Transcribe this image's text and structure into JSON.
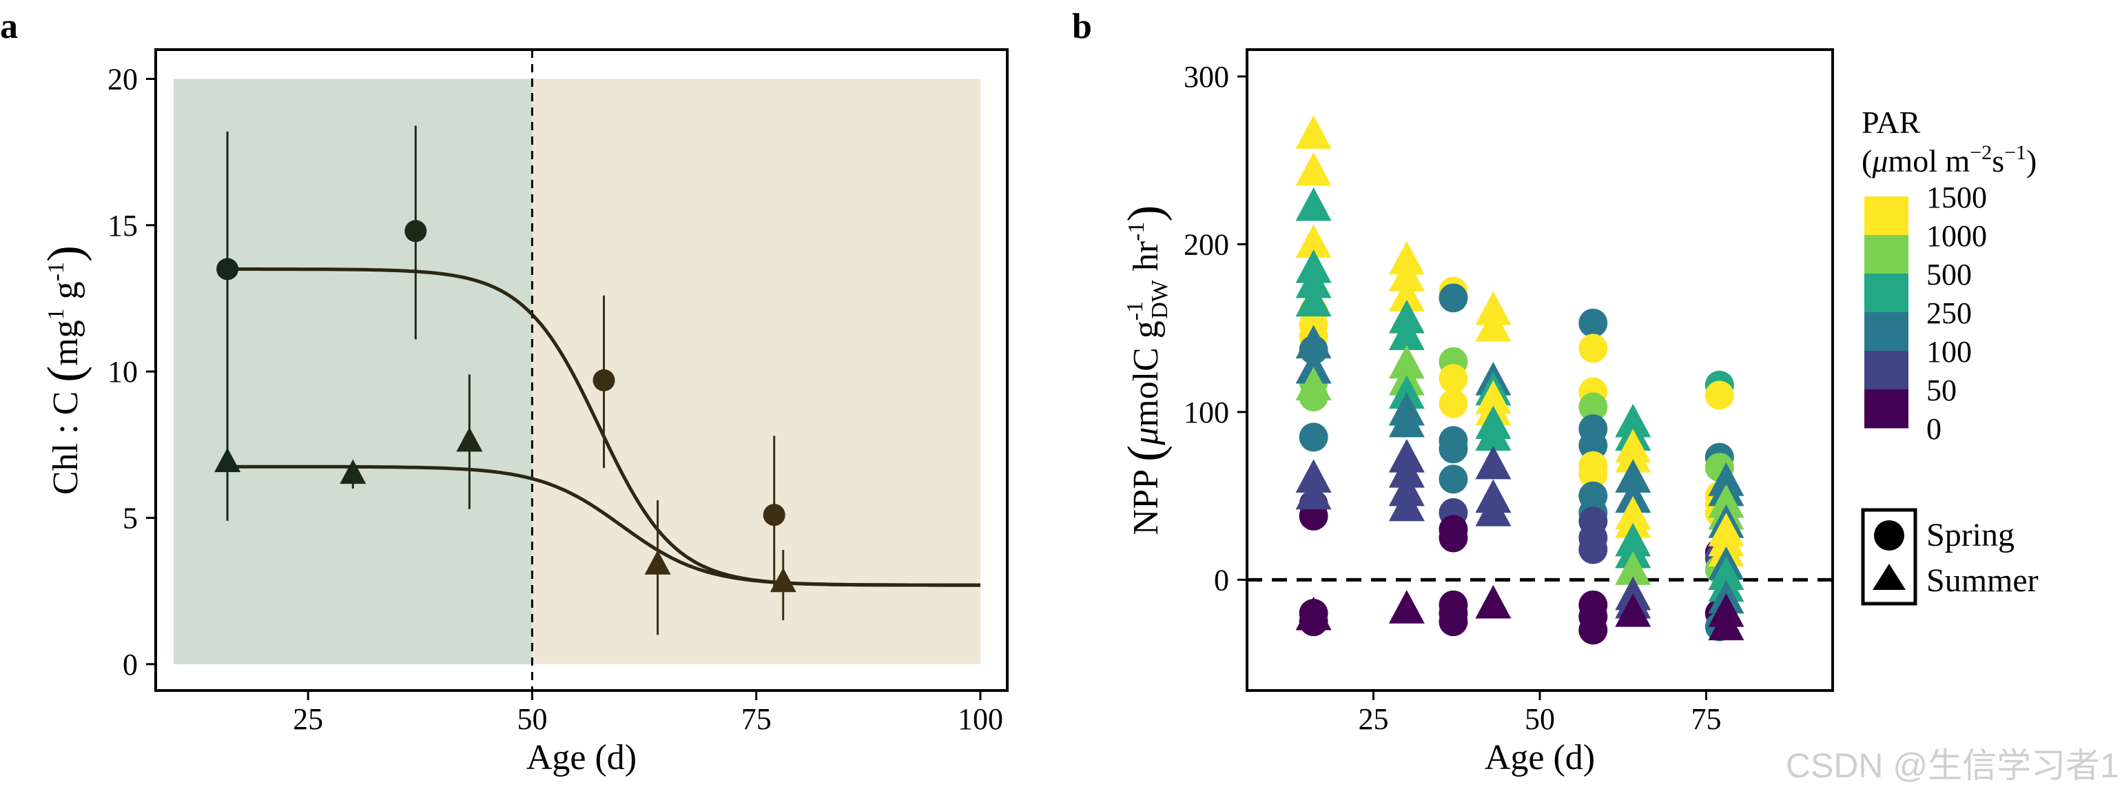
{
  "panels": {
    "a": {
      "label": "a"
    },
    "b": {
      "label": "b"
    }
  },
  "watermark": "CSDN @生信学习者1",
  "chart_data": [
    {
      "panel": "a",
      "type": "scatter",
      "xlabel": "Age (d)",
      "ylabel_main": "Chl : C ",
      "ylabel_paren_l": "(",
      "ylabel_unit": "mg",
      "ylabel_exp1": "1",
      "ylabel_unit2": " g",
      "ylabel_exp2": "-1",
      "ylabel_paren_r": ")",
      "xlim": [
        8,
        103
      ],
      "ylim": [
        -0.9,
        21
      ],
      "xticks": [
        25,
        50,
        75,
        100
      ],
      "yticks": [
        0,
        5,
        10,
        15,
        20
      ],
      "shaded_regions": [
        {
          "x": [
            10,
            50
          ],
          "y": [
            0,
            20
          ],
          "color": "#d2ddd2"
        },
        {
          "x": [
            50,
            100
          ],
          "y": [
            0,
            20
          ],
          "color": "#efe7d6"
        }
      ],
      "vline": {
        "x": 50,
        "style": "dashed"
      },
      "series": [
        {
          "name": "Spring",
          "marker": "circle",
          "points": [
            {
              "x": 16,
              "y": 13.5,
              "ylow": 8.6,
              "yhigh": 18.2,
              "color": "#15281a"
            },
            {
              "x": 37,
              "y": 14.8,
              "ylow": 11.1,
              "yhigh": 18.4,
              "color": "#1d2a18"
            },
            {
              "x": 58,
              "y": 9.7,
              "ylow": 6.7,
              "yhigh": 12.6,
              "color": "#3a2e14"
            },
            {
              "x": 77,
              "y": 5.1,
              "ylow": 2.5,
              "yhigh": 7.8,
              "color": "#3d2f12"
            }
          ],
          "fit": {
            "upper": 13.5,
            "lower": 2.7,
            "midpoint": 57.5,
            "scale": 4.2,
            "color": "#2c2713"
          }
        },
        {
          "name": "Summer",
          "marker": "triangle",
          "points": [
            {
              "x": 16,
              "y": 6.9,
              "ylow": 4.9,
              "yhigh": 8.6,
              "color": "#15281a"
            },
            {
              "x": 30,
              "y": 6.5,
              "ylow": 6.0,
              "yhigh": 6.9,
              "color": "#1a2a17"
            },
            {
              "x": 43,
              "y": 7.6,
              "ylow": 5.3,
              "yhigh": 9.9,
              "color": "#1f2b17"
            },
            {
              "x": 64,
              "y": 3.4,
              "ylow": 1.0,
              "yhigh": 5.6,
              "color": "#3a2e14"
            },
            {
              "x": 78,
              "y": 2.8,
              "ylow": 1.5,
              "yhigh": 3.9,
              "color": "#3d2f12"
            }
          ],
          "fit": {
            "upper": 6.75,
            "lower": 2.7,
            "midpoint": 60,
            "scale": 4.6,
            "color": "#2c2713"
          }
        }
      ]
    },
    {
      "panel": "b",
      "type": "scatter",
      "xlabel": "Age (d)",
      "ylabel_main": "NPP ",
      "ylabel_paren_l": "(",
      "ylabel_mu": "μ",
      "ylabel_unit": "molC g",
      "ylabel_exp1": "-1",
      "ylabel_sub": "DW",
      "ylabel_unit2": " hr",
      "ylabel_exp2": "-1",
      "ylabel_paren_r": ")",
      "xlim": [
        6,
        94
      ],
      "ylim": [
        -66,
        316
      ],
      "xticks": [
        25,
        50,
        75
      ],
      "yticks": [
        0,
        100,
        200,
        300
      ],
      "hline": {
        "y": 0,
        "style": "dashed"
      },
      "color_legend": {
        "title_line1": "PAR",
        "title_paren_l": "(",
        "title_mu": "μ",
        "title_mol": "mol m",
        "title_exp1": "−2",
        "title_s": "s",
        "title_exp2": "−1",
        "title_paren_r": ")",
        "levels": [
          "1500",
          "1000",
          "500",
          "250",
          "100",
          "50",
          "0"
        ],
        "colors": [
          "#fde725",
          "#7ad151",
          "#22a884",
          "#2a788e",
          "#414487",
          "#440154"
        ]
      },
      "shape_legend": [
        {
          "label": "Spring",
          "marker": "circle"
        },
        {
          "label": "Summer",
          "marker": "triangle"
        }
      ],
      "series": [
        {
          "name": "Spring",
          "marker": "circle",
          "points": [
            {
              "x": 16,
              "y": 160,
              "par": 1500
            },
            {
              "x": 16,
              "y": 152,
              "par": 1500
            },
            {
              "x": 16,
              "y": 145,
              "par": 1500
            },
            {
              "x": 16,
              "y": 137,
              "par": 250
            },
            {
              "x": 16,
              "y": 118,
              "par": 1000
            },
            {
              "x": 16,
              "y": 109,
              "par": 1000
            },
            {
              "x": 16,
              "y": 85,
              "par": 250
            },
            {
              "x": 16,
              "y": 45,
              "par": 50
            },
            {
              "x": 16,
              "y": 38,
              "par": 50
            },
            {
              "x": 16,
              "y": -20,
              "par": 0
            },
            {
              "x": 16,
              "y": -25,
              "par": 0
            },
            {
              "x": 37,
              "y": 172,
              "par": 1500
            },
            {
              "x": 37,
              "y": 168,
              "par": 250
            },
            {
              "x": 37,
              "y": 130,
              "par": 1000
            },
            {
              "x": 37,
              "y": 120,
              "par": 1500
            },
            {
              "x": 37,
              "y": 105,
              "par": 1500
            },
            {
              "x": 37,
              "y": 83,
              "par": 250
            },
            {
              "x": 37,
              "y": 78,
              "par": 250
            },
            {
              "x": 37,
              "y": 60,
              "par": 250
            },
            {
              "x": 37,
              "y": 40,
              "par": 100
            },
            {
              "x": 37,
              "y": 30,
              "par": 50
            },
            {
              "x": 37,
              "y": 25,
              "par": 50
            },
            {
              "x": 37,
              "y": -15,
              "par": 50
            },
            {
              "x": 37,
              "y": -20,
              "par": 0
            },
            {
              "x": 37,
              "y": -25,
              "par": 50
            },
            {
              "x": 58,
              "y": 153,
              "par": 250
            },
            {
              "x": 58,
              "y": 138,
              "par": 1500
            },
            {
              "x": 58,
              "y": 112,
              "par": 1500
            },
            {
              "x": 58,
              "y": 103,
              "par": 1000
            },
            {
              "x": 58,
              "y": 90,
              "par": 250
            },
            {
              "x": 58,
              "y": 80,
              "par": 250
            },
            {
              "x": 58,
              "y": 68,
              "par": 1500
            },
            {
              "x": 58,
              "y": 63,
              "par": 1500
            },
            {
              "x": 58,
              "y": 50,
              "par": 250
            },
            {
              "x": 58,
              "y": 40,
              "par": 250
            },
            {
              "x": 58,
              "y": 35,
              "par": 100
            },
            {
              "x": 58,
              "y": 25,
              "par": 100
            },
            {
              "x": 58,
              "y": 18,
              "par": 100
            },
            {
              "x": 58,
              "y": -15,
              "par": 0
            },
            {
              "x": 58,
              "y": -22,
              "par": 0
            },
            {
              "x": 58,
              "y": -30,
              "par": 50
            },
            {
              "x": 77,
              "y": 116,
              "par": 500
            },
            {
              "x": 77,
              "y": 110,
              "par": 1500
            },
            {
              "x": 77,
              "y": 73,
              "par": 250
            },
            {
              "x": 77,
              "y": 67,
              "par": 1000
            },
            {
              "x": 77,
              "y": 50,
              "par": 1500
            },
            {
              "x": 77,
              "y": 45,
              "par": 1500
            },
            {
              "x": 77,
              "y": 40,
              "par": 1500
            },
            {
              "x": 77,
              "y": 16,
              "par": 50
            },
            {
              "x": 77,
              "y": 13,
              "par": 100
            },
            {
              "x": 77,
              "y": 6,
              "par": 1000
            },
            {
              "x": 77,
              "y": -20,
              "par": 50
            },
            {
              "x": 77,
              "y": -28,
              "par": 250
            }
          ]
        },
        {
          "name": "Summer",
          "marker": "triangle",
          "points": [
            {
              "x": 16,
              "y": 265,
              "par": 1500
            },
            {
              "x": 16,
              "y": 243,
              "par": 1500
            },
            {
              "x": 16,
              "y": 222,
              "par": 500
            },
            {
              "x": 16,
              "y": 200,
              "par": 1500
            },
            {
              "x": 16,
              "y": 185,
              "par": 500
            },
            {
              "x": 16,
              "y": 176,
              "par": 500
            },
            {
              "x": 16,
              "y": 165,
              "par": 500
            },
            {
              "x": 16,
              "y": 140,
              "par": 250
            },
            {
              "x": 16,
              "y": 125,
              "par": 250
            },
            {
              "x": 16,
              "y": 115,
              "par": 1000
            },
            {
              "x": 16,
              "y": 60,
              "par": 100
            },
            {
              "x": 16,
              "y": 50,
              "par": 100
            },
            {
              "x": 16,
              "y": -22,
              "par": 0
            },
            {
              "x": 30,
              "y": 190,
              "par": 1500
            },
            {
              "x": 30,
              "y": 180,
              "par": 1500
            },
            {
              "x": 30,
              "y": 168,
              "par": 1500
            },
            {
              "x": 30,
              "y": 155,
              "par": 500
            },
            {
              "x": 30,
              "y": 145,
              "par": 500
            },
            {
              "x": 30,
              "y": 128,
              "par": 1000
            },
            {
              "x": 30,
              "y": 118,
              "par": 1000
            },
            {
              "x": 30,
              "y": 110,
              "par": 500
            },
            {
              "x": 30,
              "y": 100,
              "par": 250
            },
            {
              "x": 30,
              "y": 93,
              "par": 250
            },
            {
              "x": 30,
              "y": 72,
              "par": 100
            },
            {
              "x": 30,
              "y": 63,
              "par": 100
            },
            {
              "x": 30,
              "y": 52,
              "par": 100
            },
            {
              "x": 30,
              "y": 43,
              "par": 100
            },
            {
              "x": 30,
              "y": -18,
              "par": 0
            },
            {
              "x": 43,
              "y": 160,
              "par": 1500
            },
            {
              "x": 43,
              "y": 150,
              "par": 1500
            },
            {
              "x": 43,
              "y": 118,
              "par": 250
            },
            {
              "x": 43,
              "y": 112,
              "par": 500
            },
            {
              "x": 43,
              "y": 107,
              "par": 1500
            },
            {
              "x": 43,
              "y": 100,
              "par": 1500
            },
            {
              "x": 43,
              "y": 92,
              "par": 500
            },
            {
              "x": 43,
              "y": 85,
              "par": 500
            },
            {
              "x": 43,
              "y": 68,
              "par": 100
            },
            {
              "x": 43,
              "y": 48,
              "par": 100
            },
            {
              "x": 43,
              "y": 40,
              "par": 100
            },
            {
              "x": 43,
              "y": -15,
              "par": 0
            },
            {
              "x": 64,
              "y": 93,
              "par": 500
            },
            {
              "x": 64,
              "y": 85,
              "par": 500
            },
            {
              "x": 64,
              "y": 78,
              "par": 1500
            },
            {
              "x": 64,
              "y": 72,
              "par": 1500
            },
            {
              "x": 64,
              "y": 60,
              "par": 250
            },
            {
              "x": 64,
              "y": 48,
              "par": 250
            },
            {
              "x": 64,
              "y": 38,
              "par": 1500
            },
            {
              "x": 64,
              "y": 33,
              "par": 1500
            },
            {
              "x": 64,
              "y": 22,
              "par": 500
            },
            {
              "x": 64,
              "y": 15,
              "par": 500
            },
            {
              "x": 64,
              "y": 5,
              "par": 1000
            },
            {
              "x": 64,
              "y": -10,
              "par": 100
            },
            {
              "x": 64,
              "y": -15,
              "par": 100
            },
            {
              "x": 64,
              "y": -20,
              "par": 50
            },
            {
              "x": 78,
              "y": 58,
              "par": 250
            },
            {
              "x": 78,
              "y": 52,
              "par": 250
            },
            {
              "x": 78,
              "y": 45,
              "par": 1000
            },
            {
              "x": 78,
              "y": 38,
              "par": 1000
            },
            {
              "x": 78,
              "y": 33,
              "par": 250
            },
            {
              "x": 78,
              "y": 28,
              "par": 1500
            },
            {
              "x": 78,
              "y": 22,
              "par": 1500
            },
            {
              "x": 78,
              "y": 16,
              "par": 1500
            },
            {
              "x": 78,
              "y": 8,
              "par": 250
            },
            {
              "x": 78,
              "y": 2,
              "par": 500
            },
            {
              "x": 78,
              "y": -5,
              "par": 500
            },
            {
              "x": 78,
              "y": -12,
              "par": 250
            },
            {
              "x": 78,
              "y": -20,
              "par": 50
            },
            {
              "x": 78,
              "y": -28,
              "par": 50
            }
          ]
        }
      ]
    }
  ]
}
